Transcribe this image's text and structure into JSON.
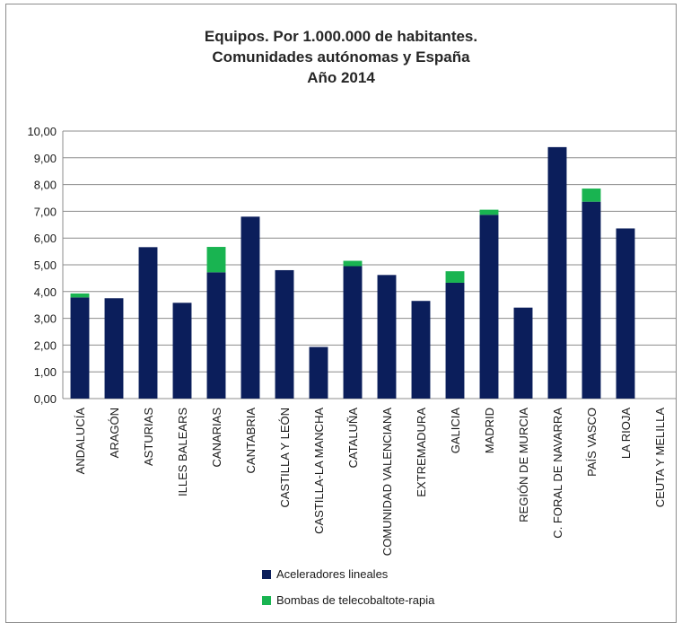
{
  "colors": {
    "aceleradores": "#0b1e5b",
    "bombas": "#19b451",
    "grid": "#8c8c8c"
  },
  "chart_data": {
    "type": "bar",
    "stacked": true,
    "title": [
      "Equipos. Por 1.000.000 de habitantes.",
      "Comunidades autónomas y España",
      "Año 2014"
    ],
    "categories": [
      "ANDALUCÍA",
      "ARAGÓN",
      "ASTURIAS",
      "ILLES BALEARS",
      "CANARIAS",
      "CANTABRIA",
      "CASTILLA Y LEÓN",
      "CASTILLA-LA MANCHA",
      "CATALUÑA",
      "COMUNIDAD VALENCIANA",
      "EXTREMADURA",
      "GALICIA",
      "MADRID",
      "REGIÓN DE MURCIA",
      "C. FORAL DE NAVARRA",
      "PAÍS VASCO",
      "LA RIOJA",
      "CEUTA Y MELILLA"
    ],
    "series": [
      {
        "name": "Aceleradores lineales",
        "values": [
          3.78,
          3.75,
          5.66,
          3.58,
          4.72,
          6.8,
          4.8,
          1.93,
          4.95,
          4.62,
          3.65,
          4.33,
          6.87,
          3.4,
          9.4,
          7.36,
          6.36,
          0
        ]
      },
      {
        "name": "Bombas de telecobaltote-rapia",
        "values": [
          0.15,
          0,
          0,
          0,
          0.95,
          0,
          0,
          0,
          0.2,
          0,
          0,
          0.43,
          0.19,
          0,
          0,
          0.49,
          0,
          0
        ]
      }
    ],
    "ylim": [
      0,
      10
    ],
    "yticks": [
      "0,00",
      "1,00",
      "2,00",
      "3,00",
      "4,00",
      "5,00",
      "6,00",
      "7,00",
      "8,00",
      "9,00",
      "10,00"
    ],
    "grid": true,
    "legend_position": "bottom"
  }
}
